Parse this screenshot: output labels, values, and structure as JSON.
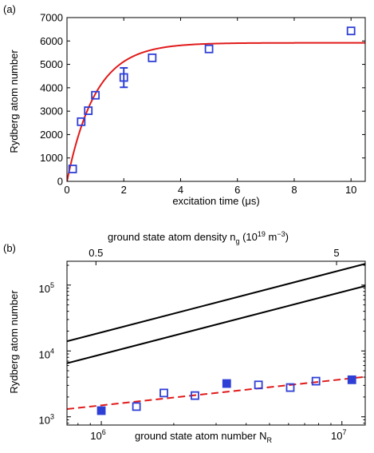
{
  "chart_data": [
    {
      "panel_label": "(a)",
      "type": "scatter",
      "xlabel": "excitation time (μs)",
      "ylabel": "Rydberg atom number",
      "xlim": [
        0,
        10.5
      ],
      "ylim": [
        0,
        7000
      ],
      "xticks": [
        0,
        2,
        4,
        6,
        8,
        10
      ],
      "yticks": [
        0,
        1000,
        2000,
        3000,
        4000,
        5000,
        6000,
        7000
      ],
      "grid": false,
      "series": [
        {
          "marker": "open-square",
          "color": "#2e3fd6",
          "x": [
            0.2,
            0.5,
            0.75,
            1.0,
            2.0,
            3.0,
            5.0,
            10.0
          ],
          "y": [
            530,
            2550,
            3020,
            3680,
            4440,
            5280,
            5660,
            6430
          ],
          "error_bar": {
            "x": 2.0,
            "low": 4020,
            "high": 4850
          }
        },
        {
          "style": "fit-line",
          "color": "#e11a1a",
          "function": "saturating-exponential",
          "saturation": 5920,
          "rate": 1.0
        }
      ]
    },
    {
      "panel_label": "(b)",
      "type": "scatter",
      "xscale": "log",
      "yscale": "log",
      "xlabel": "ground state atom number N",
      "xlabel_sub": "R",
      "top_xlabel_main": "ground state atom density n",
      "top_xlabel_sub": "g",
      "top_xlabel_mid": " (10",
      "top_xlabel_sup1": "19",
      "top_xlabel_unit": " m",
      "top_xlabel_sup2": "−3",
      "top_xlabel_end": ")",
      "top_xticks": [
        {
          "label": "0.5",
          "N": 950000
        },
        {
          "label": "5",
          "N": 9500000
        }
      ],
      "ylabel": "Rydberg atom number",
      "xlim": [
        720000,
        12500000
      ],
      "ylim": [
        750,
        230000
      ],
      "xticks": [
        {
          "label": "10",
          "sup": "6",
          "value": 1000000
        },
        {
          "label": "10",
          "sup": "7",
          "value": 10000000
        }
      ],
      "yticks": [
        {
          "label": "10",
          "sup": "3",
          "value": 1000
        },
        {
          "label": "10",
          "sup": "4",
          "value": 10000
        },
        {
          "label": "10",
          "sup": "5",
          "value": 100000
        }
      ],
      "grid": false,
      "series": [
        {
          "marker": "open-square",
          "color": "#2e3fd6",
          "x": [
            1400000,
            1820000,
            2450000,
            4500000,
            6100000,
            7800000
          ],
          "y": [
            1430,
            2300,
            2100,
            3050,
            2780,
            3480
          ]
        },
        {
          "marker": "filled-square",
          "color": "#2e3fd6",
          "x": [
            1000000,
            3320000,
            11000000
          ],
          "y": [
            1240,
            3200,
            3650
          ]
        },
        {
          "style": "dashed-line",
          "color": "#e11a1a",
          "x": [
            720000,
            12500000
          ],
          "y": [
            1310,
            4050
          ]
        },
        {
          "style": "solid-line",
          "color": "#000000",
          "x": [
            720000,
            12500000
          ],
          "y": [
            14000,
            210000
          ]
        },
        {
          "style": "solid-line",
          "color": "#000000",
          "x": [
            720000,
            12500000
          ],
          "y": [
            6500,
            97000
          ]
        }
      ]
    }
  ]
}
